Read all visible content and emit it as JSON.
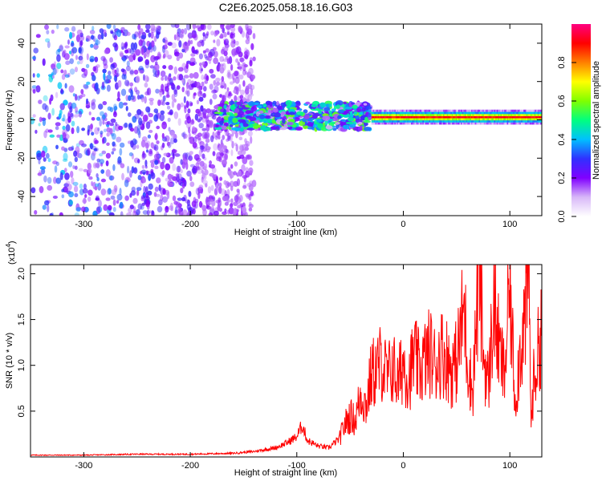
{
  "title": "C2E6.2025.058.18.16.G03",
  "chart_data": [
    {
      "type": "heatmap",
      "xlabel": "Height of straight line (km)",
      "ylabel": "Frequency (Hz)",
      "xlim": [
        -350,
        130
      ],
      "ylim": [
        -50,
        50
      ],
      "xticks": [
        -300,
        -200,
        -100,
        0,
        100
      ],
      "yticks": [
        -40,
        -20,
        0,
        20,
        40
      ],
      "colorbar": {
        "label": "Normalized spectral amplitude",
        "range": [
          0,
          1
        ],
        "ticks": [
          "0.0",
          "0.2",
          "0.4",
          "0.6",
          "0.8"
        ],
        "colormap": [
          "#ffffff",
          "#d8b8f8",
          "#8000ff",
          "#3030ff",
          "#00c0ff",
          "#00ff80",
          "#80ff00",
          "#ffff00",
          "#ff8000",
          "#ff0000",
          "#ff0080"
        ]
      },
      "features": [
        {
          "x_range": [
            -350,
            -140
          ],
          "description": "broadband noise",
          "amplitude": 0.12
        },
        {
          "x_range": [
            -175,
            -30
          ],
          "frequency_center": 2,
          "amplitude": 0.5
        },
        {
          "x_range": [
            -30,
            130
          ],
          "frequency_center": 2,
          "amplitude": 0.9
        }
      ]
    },
    {
      "type": "line",
      "xlabel": "Height of straight line (km)",
      "ylabel": "SNR (10 * v/v)",
      "y_multiplier": "(x10",
      "y_multiplier_exp": "4",
      "y_multiplier_close": ")",
      "xlim": [
        -350,
        130
      ],
      "ylim": [
        0,
        2.1
      ],
      "xticks": [
        -300,
        -200,
        -100,
        0,
        100
      ],
      "yticks": [
        "0.5",
        "1.0",
        "1.5",
        "2.0"
      ],
      "color": "#ff0000",
      "series": [
        {
          "x": [
            -350,
            -300,
            -250,
            -200,
            -160,
            -140,
            -120,
            -110,
            -100,
            -95,
            -90,
            -80,
            -70,
            -60,
            -55,
            -50,
            -45,
            -40,
            -35,
            -30,
            -25,
            -20,
            -15,
            -10,
            -5,
            0,
            5,
            10,
            15,
            20,
            25,
            30,
            35,
            40,
            45,
            50,
            55,
            57,
            60,
            65,
            70,
            72,
            75,
            80,
            85,
            90,
            95,
            100,
            105,
            110,
            115,
            118,
            120,
            122,
            125,
            130
          ],
          "y": [
            0.02,
            0.02,
            0.03,
            0.03,
            0.04,
            0.06,
            0.1,
            0.15,
            0.22,
            0.35,
            0.18,
            0.12,
            0.1,
            0.2,
            0.35,
            0.45,
            0.4,
            0.7,
            0.55,
            0.9,
            0.95,
            1.05,
            0.85,
            1.0,
            0.8,
            1.05,
            0.85,
            1.1,
            0.95,
            1.05,
            1.15,
            1.0,
            1.15,
            1.1,
            0.95,
            1.05,
            1.45,
            1.65,
            1.1,
            0.7,
            1.8,
            2.1,
            1.1,
            0.8,
            1.7,
            1.15,
            0.9,
            1.85,
            0.6,
            1.2,
            1.55,
            2.1,
            0.3,
            0.8,
            1.0,
            1.45
          ]
        }
      ]
    }
  ]
}
